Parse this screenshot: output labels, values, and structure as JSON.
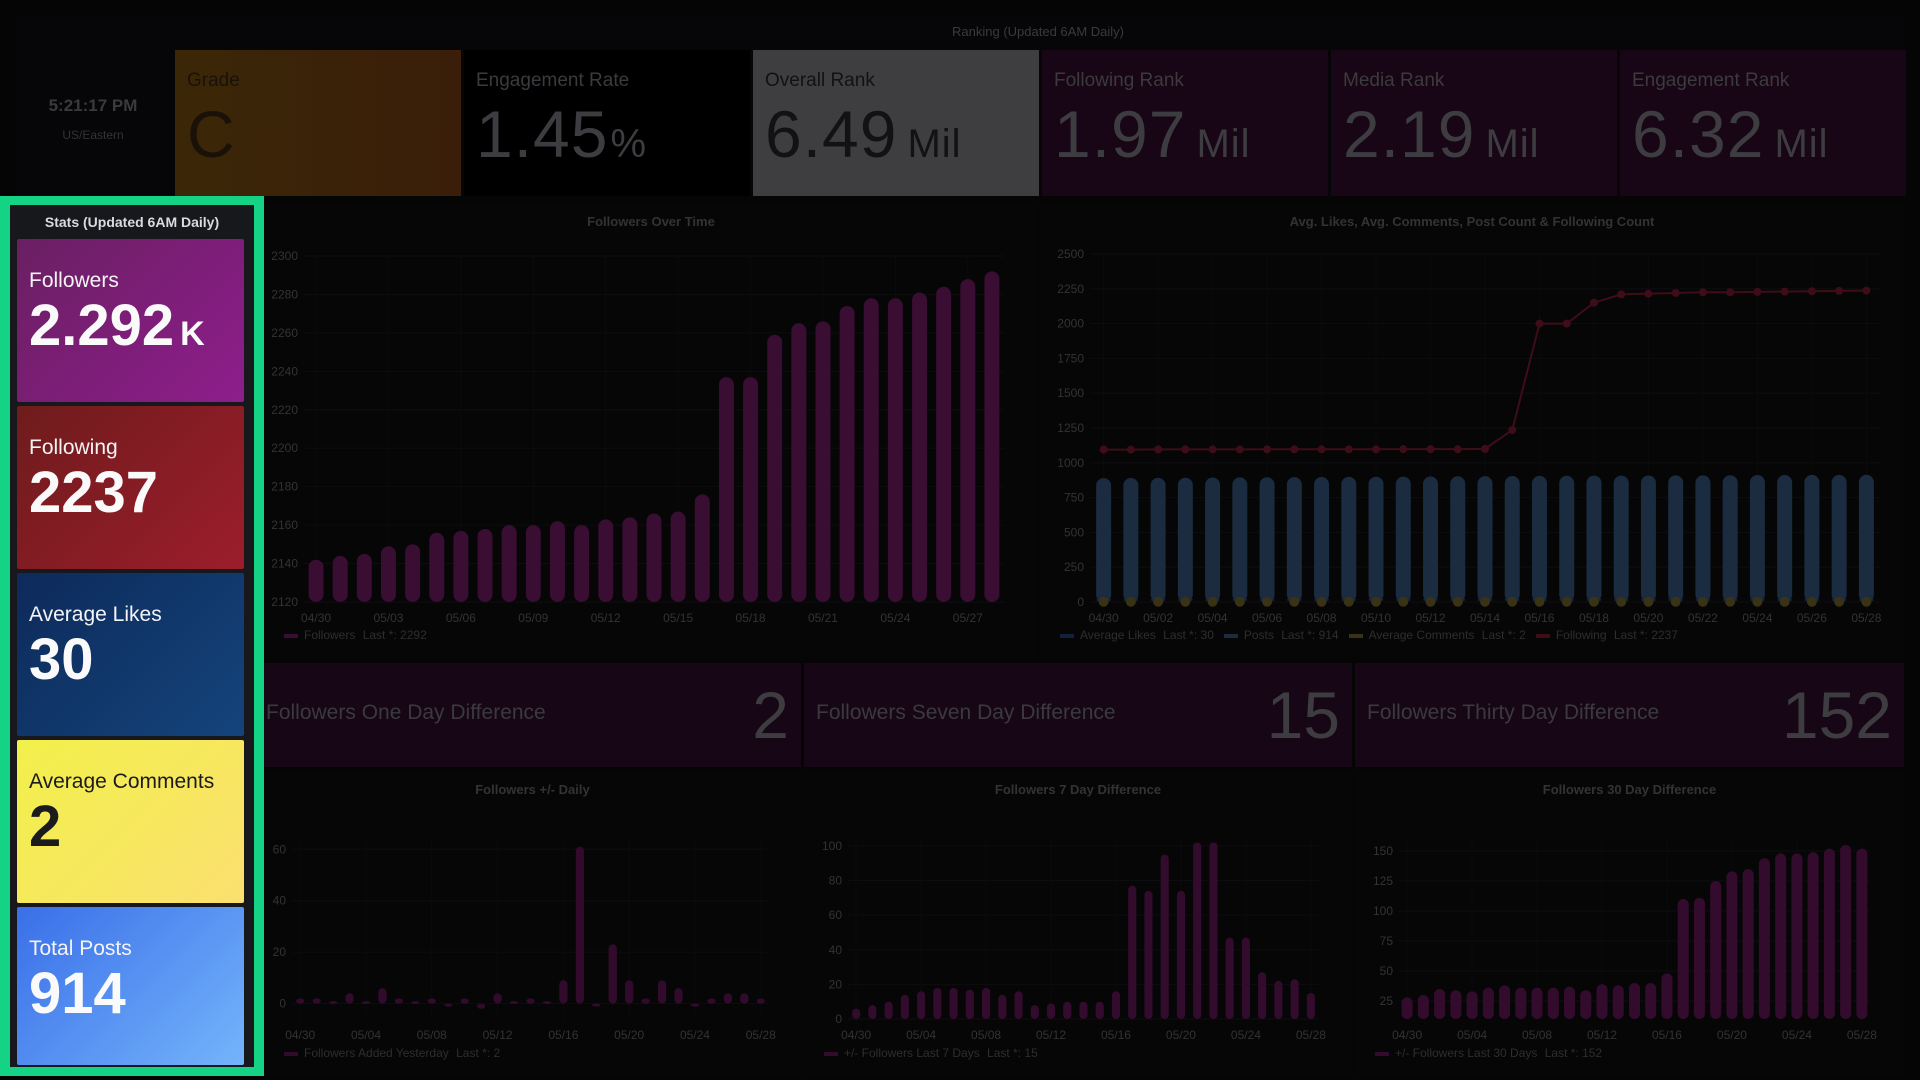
{
  "clock": {
    "time": "5:21:17 PM",
    "timezone": "US/Eastern"
  },
  "ranking": {
    "title": "Ranking (Updated 6AM Daily)",
    "cards": [
      {
        "label": "Grade",
        "value": "C",
        "unit": "",
        "color": "#3b2707"
      },
      {
        "label": "Engagement Rate",
        "value": "1.45",
        "unit": "%",
        "color": "#000000"
      },
      {
        "label": "Overall Rank",
        "value": "6.49",
        "unit": "Mil",
        "color": "#3e3e40"
      },
      {
        "label": "Following Rank",
        "value": "1.97",
        "unit": "Mil",
        "color": "#180515"
      },
      {
        "label": "Media Rank",
        "value": "2.19",
        "unit": "Mil",
        "color": "#180515"
      },
      {
        "label": "Engagement Rank",
        "value": "6.32",
        "unit": "Mil",
        "color": "#180515"
      }
    ]
  },
  "stats": {
    "title": "Stats (Updated 6AM Daily)",
    "highlight_color": "#14d384",
    "cards": [
      {
        "label": "Followers",
        "value": "2.292",
        "unit": "K"
      },
      {
        "label": "Following",
        "value": "2237",
        "unit": ""
      },
      {
        "label": "Average Likes",
        "value": "30",
        "unit": ""
      },
      {
        "label": "Average Comments",
        "value": "2",
        "unit": ""
      },
      {
        "label": "Total Posts",
        "value": "914",
        "unit": ""
      }
    ]
  },
  "diffs": [
    {
      "label": "Followers One Day Difference",
      "value": "2"
    },
    {
      "label": "Followers Seven Day Difference",
      "value": "15"
    },
    {
      "label": "Followers Thirty Day Difference",
      "value": "152"
    }
  ],
  "chart_data": [
    {
      "id": "followers_over_time",
      "type": "bar",
      "title": "Followers Over Time",
      "categories": [
        "04/30",
        "05/01",
        "05/02",
        "05/03",
        "05/04",
        "05/05",
        "05/06",
        "05/07",
        "05/08",
        "05/09",
        "05/10",
        "05/11",
        "05/12",
        "05/13",
        "05/14",
        "05/15",
        "05/16",
        "05/17",
        "05/18",
        "05/19",
        "05/20",
        "05/21",
        "05/22",
        "05/23",
        "05/24",
        "05/25",
        "05/26",
        "05/27",
        "05/28"
      ],
      "tick_labels": [
        "04/30",
        "05/03",
        "05/06",
        "05/09",
        "05/12",
        "05/15",
        "05/18",
        "05/21",
        "05/24",
        "05/27"
      ],
      "series": [
        {
          "name": "Followers",
          "color": "#3a0d33",
          "values": [
            2142,
            2144,
            2145,
            2149,
            2150,
            2156,
            2157,
            2158,
            2160,
            2160,
            2162,
            2160,
            2163,
            2164,
            2166,
            2167,
            2176,
            2237,
            2237,
            2259,
            2265,
            2266,
            2274,
            2278,
            2278,
            2281,
            2284,
            2288,
            2292
          ]
        }
      ],
      "ylim": [
        2120,
        2300
      ],
      "yticks": [
        2120,
        2140,
        2160,
        2180,
        2200,
        2220,
        2240,
        2260,
        2280,
        2300
      ],
      "legend": {
        "items": [
          {
            "name": "Followers",
            "suffix": "Last *: 2292"
          }
        ],
        "placement": "bottom-left"
      },
      "grid": true
    },
    {
      "id": "avg_likes_comments",
      "type": "bar",
      "title": "Avg. Likes, Avg. Comments, Post Count & Following Count",
      "categories": [
        "04/30",
        "05/01",
        "05/02",
        "05/03",
        "05/04",
        "05/05",
        "05/06",
        "05/07",
        "05/08",
        "05/09",
        "05/10",
        "05/11",
        "05/12",
        "05/13",
        "05/14",
        "05/15",
        "05/16",
        "05/17",
        "05/18",
        "05/19",
        "05/20",
        "05/21",
        "05/22",
        "05/23",
        "05/24",
        "05/25",
        "05/26",
        "05/27",
        "05/28"
      ],
      "tick_labels": [
        "04/30",
        "05/02",
        "05/04",
        "05/06",
        "05/08",
        "05/10",
        "05/12",
        "05/14",
        "05/16",
        "05/18",
        "05/20",
        "05/22",
        "05/24",
        "05/26",
        "05/28"
      ],
      "series": [
        {
          "name": "Average Likes",
          "kind": "bar",
          "color": "#13213a",
          "values": [
            30,
            30,
            30,
            30,
            30,
            30,
            30,
            30,
            30,
            30,
            30,
            30,
            30,
            30,
            30,
            30,
            30,
            30,
            30,
            30,
            30,
            30,
            30,
            30,
            30,
            30,
            30,
            30,
            30
          ]
        },
        {
          "name": "Posts",
          "kind": "bar",
          "color": "#1b2c40",
          "values": [
            890,
            891,
            892,
            893,
            894,
            895,
            896,
            897,
            898,
            899,
            900,
            901,
            902,
            903,
            904,
            905,
            906,
            907,
            908,
            908,
            909,
            910,
            910,
            911,
            912,
            912,
            913,
            913,
            914
          ]
        },
        {
          "name": "Average Comments",
          "kind": "points",
          "color": "#3a3214",
          "values": [
            2,
            2,
            2,
            2,
            2,
            2,
            2,
            2,
            2,
            2,
            2,
            2,
            2,
            2,
            2,
            2,
            2,
            2,
            2,
            2,
            2,
            2,
            2,
            2,
            2,
            2,
            2,
            2,
            2
          ]
        },
        {
          "name": "Following",
          "kind": "line",
          "color": "#3e0d18",
          "values": [
            1095,
            1095,
            1096,
            1096,
            1096,
            1096,
            1097,
            1097,
            1097,
            1097,
            1097,
            1098,
            1098,
            1098,
            1100,
            1235,
            2000,
            2000,
            2150,
            2210,
            2215,
            2220,
            2225,
            2225,
            2228,
            2230,
            2232,
            2235,
            2237
          ]
        }
      ],
      "ylim": [
        0,
        2500
      ],
      "yticks": [
        0,
        250,
        500,
        750,
        1000,
        1250,
        1500,
        1750,
        2000,
        2250,
        2500
      ],
      "legend": {
        "items": [
          {
            "name": "Average Likes",
            "suffix": "Last *: 30"
          },
          {
            "name": "Posts",
            "suffix": "Last *: 914"
          },
          {
            "name": "Average Comments",
            "suffix": "Last *: 2"
          },
          {
            "name": "Following",
            "suffix": "Last *: 2237"
          }
        ],
        "placement": "bottom-left"
      },
      "grid": true
    },
    {
      "id": "followers_daily",
      "type": "bar",
      "title": "Followers +/- Daily",
      "categories": [
        "04/30",
        "05/01",
        "05/02",
        "05/03",
        "05/04",
        "05/05",
        "05/06",
        "05/07",
        "05/08",
        "05/09",
        "05/10",
        "05/11",
        "05/12",
        "05/13",
        "05/14",
        "05/15",
        "05/16",
        "05/17",
        "05/18",
        "05/19",
        "05/20",
        "05/21",
        "05/22",
        "05/23",
        "05/24",
        "05/25",
        "05/26",
        "05/27",
        "05/28"
      ],
      "tick_labels": [
        "04/30",
        "05/04",
        "05/08",
        "05/12",
        "05/16",
        "05/20",
        "05/24",
        "05/28"
      ],
      "series": [
        {
          "name": "Followers Added Yesterday",
          "color": "#320b2c",
          "values": [
            2,
            2,
            1,
            4,
            1,
            6,
            2,
            1,
            2,
            0,
            2,
            -2,
            4,
            1,
            2,
            1,
            9,
            61,
            -1,
            23,
            9,
            2,
            9,
            6,
            0,
            2,
            4,
            4,
            2
          ]
        }
      ],
      "ylim": [
        -6,
        64
      ],
      "yticks": [
        0,
        20,
        40,
        60
      ],
      "legend": {
        "items": [
          {
            "name": "Followers Added Yesterday",
            "suffix": "Last *: 2"
          }
        ],
        "placement": "bottom-left"
      },
      "grid": true
    },
    {
      "id": "followers_7day",
      "type": "bar",
      "title": "Followers 7 Day Difference",
      "categories": [
        "04/30",
        "05/01",
        "05/02",
        "05/03",
        "05/04",
        "05/05",
        "05/06",
        "05/07",
        "05/08",
        "05/09",
        "05/10",
        "05/11",
        "05/12",
        "05/13",
        "05/14",
        "05/15",
        "05/16",
        "05/17",
        "05/18",
        "05/19",
        "05/20",
        "05/21",
        "05/22",
        "05/23",
        "05/24",
        "05/25",
        "05/26",
        "05/27",
        "05/28"
      ],
      "tick_labels": [
        "04/30",
        "05/04",
        "05/08",
        "05/12",
        "05/16",
        "05/20",
        "05/24",
        "05/28"
      ],
      "series": [
        {
          "name": "+/- Followers Last 7 Days",
          "color": "#330b2d",
          "values": [
            6,
            8,
            10,
            14,
            16,
            18,
            18,
            17,
            18,
            14,
            16,
            8,
            9,
            10,
            10,
            10,
            16,
            77,
            74,
            95,
            74,
            102,
            102,
            47,
            47,
            27,
            22,
            23,
            15
          ]
        }
      ],
      "ylim": [
        0,
        104
      ],
      "yticks": [
        0,
        20,
        40,
        60,
        80,
        100
      ],
      "legend": {
        "items": [
          {
            "name": "+/- Followers Last 7 Days",
            "suffix": "Last *: 15"
          }
        ],
        "placement": "bottom-left"
      },
      "grid": true
    },
    {
      "id": "followers_30day",
      "type": "bar",
      "title": "Followers 30 Day Difference",
      "categories": [
        "04/30",
        "05/01",
        "05/02",
        "05/03",
        "05/04",
        "05/05",
        "05/06",
        "05/07",
        "05/08",
        "05/09",
        "05/10",
        "05/11",
        "05/12",
        "05/13",
        "05/14",
        "05/15",
        "05/16",
        "05/17",
        "05/18",
        "05/19",
        "05/20",
        "05/21",
        "05/22",
        "05/23",
        "05/24",
        "05/25",
        "05/26",
        "05/27",
        "05/28"
      ],
      "tick_labels": [
        "04/30",
        "05/04",
        "05/08",
        "05/12",
        "05/16",
        "05/20",
        "05/24",
        "05/28"
      ],
      "series": [
        {
          "name": "+/- Followers Last 30 Days",
          "color": "#330b2d",
          "values": [
            28,
            30,
            35,
            34,
            33,
            36,
            38,
            36,
            36,
            36,
            37,
            34,
            39,
            38,
            40,
            40,
            48,
            110,
            111,
            125,
            133,
            135,
            144,
            148,
            148,
            149,
            152,
            155,
            152
          ]
        }
      ],
      "ylim": [
        10,
        160
      ],
      "yticks": [
        25,
        50,
        75,
        100,
        125,
        150
      ],
      "legend": {
        "items": [
          {
            "name": "+/- Followers Last 30 Days",
            "suffix": "Last *: 152"
          }
        ],
        "placement": "bottom-left"
      },
      "grid": true
    }
  ]
}
